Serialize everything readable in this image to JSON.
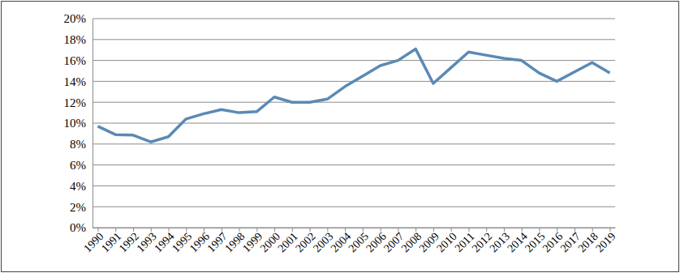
{
  "chart_data": {
    "type": "line",
    "categories": [
      "1990",
      "1991",
      "1992",
      "1993",
      "1994",
      "1995",
      "1996",
      "1997",
      "1998",
      "1999",
      "2000",
      "2001",
      "2002",
      "2003",
      "2004",
      "2005",
      "2006",
      "2007",
      "2008",
      "2009",
      "2010",
      "2011",
      "2012",
      "2013",
      "2014",
      "2015",
      "2016",
      "2017",
      "2018",
      "2019"
    ],
    "values": [
      9.7,
      8.9,
      8.85,
      8.2,
      8.7,
      10.4,
      10.9,
      11.3,
      11.0,
      11.1,
      12.5,
      12.0,
      12.0,
      12.3,
      13.5,
      14.5,
      15.5,
      16.0,
      17.1,
      13.8,
      15.3,
      16.8,
      16.5,
      16.2,
      16.0,
      14.8,
      14.0,
      14.9,
      15.8,
      14.8
    ],
    "color": "#5b8ab5",
    "ylim": [
      0,
      20
    ],
    "yticks": [
      {
        "value": 0,
        "label": "0%"
      },
      {
        "value": 2,
        "label": "2%"
      },
      {
        "value": 4,
        "label": "4%"
      },
      {
        "value": 6,
        "label": "6%"
      },
      {
        "value": 8,
        "label": "8%"
      },
      {
        "value": 10,
        "label": "10%"
      },
      {
        "value": 12,
        "label": "12%"
      },
      {
        "value": 14,
        "label": "14%"
      },
      {
        "value": 16,
        "label": "16%"
      },
      {
        "value": 18,
        "label": "18%"
      },
      {
        "value": 20,
        "label": "20%"
      }
    ],
    "grid": true
  }
}
